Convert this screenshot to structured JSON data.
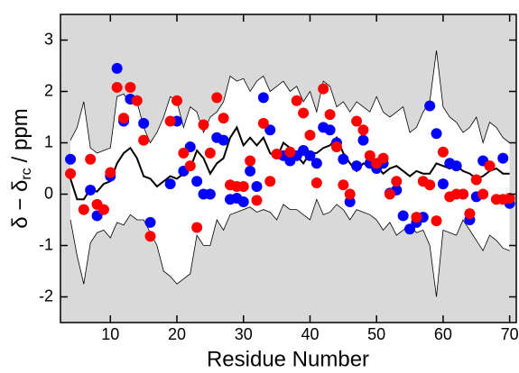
{
  "chart_data": {
    "type": "scatter",
    "xlabel": "Residue Number",
    "ylabel": [
      "δ − δ",
      "rc",
      "/ ppm"
    ],
    "xlim": [
      2.5,
      71
    ],
    "ylim": [
      -2.5,
      3.5
    ],
    "xticks": [
      10,
      20,
      30,
      40,
      50,
      60,
      70
    ],
    "yticks": [
      -2,
      -1,
      0,
      1,
      2,
      3
    ],
    "background": "#d9d9d9",
    "x": [
      4,
      5,
      6,
      7,
      8,
      9,
      10,
      11,
      12,
      13,
      14,
      15,
      16,
      17,
      18,
      19,
      20,
      21,
      22,
      23,
      24,
      25,
      26,
      27,
      28,
      29,
      30,
      31,
      32,
      33,
      34,
      35,
      36,
      37,
      38,
      39,
      40,
      41,
      42,
      43,
      44,
      45,
      46,
      47,
      48,
      49,
      50,
      51,
      52,
      53,
      54,
      55,
      56,
      57,
      58,
      59,
      60,
      61,
      62,
      63,
      64,
      65,
      66,
      67,
      68,
      69,
      70
    ],
    "band": {
      "color": "#ffffff",
      "upper": [
        1.05,
        1.3,
        1.8,
        0.9,
        0.8,
        0.85,
        0.9,
        1.9,
        1.95,
        1.75,
        1.8,
        1.3,
        1.0,
        1.2,
        1.5,
        1.9,
        1.8,
        1.3,
        1.7,
        1.6,
        1.2,
        1.5,
        1.6,
        1.8,
        2.3,
        2.2,
        2.25,
        2.0,
        2.2,
        2.3,
        2.0,
        2.1,
        2.2,
        2.0,
        2.1,
        1.8,
        2.0,
        1.6,
        2.2,
        2.1,
        1.7,
        1.8,
        1.6,
        1.8,
        1.7,
        1.6,
        1.9,
        1.6,
        1.5,
        1.6,
        1.7,
        1.2,
        1.3,
        1.6,
        1.8,
        2.8,
        1.7,
        1.5,
        1.4,
        1.2,
        1.3,
        1.5,
        1.0,
        1.4,
        1.3,
        1.1,
        1.0
      ],
      "lower": [
        -0.5,
        -1.2,
        -1.75,
        -0.95,
        -0.75,
        -0.7,
        -0.85,
        -0.55,
        -0.6,
        -0.4,
        -0.5,
        -0.5,
        -0.75,
        -1.0,
        -1.5,
        -1.6,
        -1.75,
        -1.65,
        -1.55,
        -0.8,
        -1.0,
        -1.0,
        -0.5,
        -0.7,
        -0.4,
        -0.35,
        -0.3,
        -0.25,
        -0.35,
        -0.3,
        -0.35,
        -0.5,
        -0.2,
        -0.3,
        -0.3,
        -0.4,
        -0.5,
        -0.1,
        -0.4,
        -0.35,
        -0.2,
        -0.3,
        -0.5,
        -0.3,
        -0.35,
        -0.4,
        -0.5,
        -0.7,
        -0.55,
        -0.8,
        -0.7,
        -0.6,
        -0.75,
        -0.7,
        -1.0,
        -2.0,
        -0.7,
        -0.75,
        -0.8,
        -0.5,
        -0.7,
        -0.9,
        -1.1,
        -0.8,
        -0.9,
        -1.05,
        -1.1
      ]
    },
    "line": {
      "color": "#000000",
      "values": [
        0.3,
        -0.1,
        -0.1,
        0.1,
        0.05,
        0.2,
        0.25,
        0.6,
        0.8,
        0.9,
        0.7,
        0.35,
        0.3,
        0.15,
        0.25,
        0.35,
        0.3,
        0.4,
        0.5,
        0.85,
        0.7,
        0.4,
        0.6,
        0.7,
        1.1,
        1.3,
        0.95,
        1.1,
        0.95,
        1.1,
        0.8,
        0.7,
        1.0,
        0.9,
        0.75,
        0.6,
        0.8,
        0.8,
        0.9,
        0.95,
        1.1,
        0.8,
        0.6,
        0.45,
        0.6,
        0.55,
        0.55,
        0.4,
        0.5,
        0.55,
        0.45,
        0.35,
        0.45,
        0.4,
        0.4,
        0.6,
        0.55,
        0.5,
        0.55,
        0.45,
        0.4,
        0.3,
        0.35,
        0.45,
        0.5,
        0.4,
        0.4
      ]
    },
    "series": [
      {
        "color": "#0000ff",
        "x": [
          4,
          7,
          8,
          10,
          11,
          12,
          13,
          15,
          16,
          19,
          20,
          21,
          22,
          23,
          24,
          25,
          26,
          27,
          28,
          29,
          30,
          31,
          32,
          33,
          34,
          36,
          37,
          38,
          39,
          40,
          41,
          42,
          43,
          44,
          45,
          46,
          47,
          48,
          49,
          50,
          51,
          52,
          53,
          54,
          55,
          56,
          57,
          58,
          59,
          60,
          61,
          62,
          63,
          64,
          65,
          66,
          69,
          70
        ],
        "values": [
          0.68,
          0.08,
          -0.42,
          0.35,
          2.45,
          1.42,
          1.85,
          1.38,
          -0.55,
          0.2,
          1.42,
          0.45,
          0.92,
          0.25,
          0.0,
          0.0,
          1.1,
          1.05,
          -0.1,
          -0.08,
          -0.15,
          0.45,
          0.15,
          1.88,
          1.25,
          0.75,
          0.65,
          0.75,
          0.85,
          0.75,
          0.6,
          1.3,
          1.25,
          1.0,
          0.68,
          -0.15,
          0.55,
          1.05,
          0.6,
          0.5,
          0.6,
          0.02,
          0.08,
          -0.42,
          -0.68,
          -0.55,
          -0.45,
          1.72,
          1.18,
          0.2,
          0.6,
          0.55,
          0.0,
          -0.5,
          -0.05,
          0.65,
          0.7,
          -0.18
        ]
      },
      {
        "color": "#ff0000",
        "x": [
          4,
          6,
          7,
          8,
          9,
          10,
          11,
          12,
          13,
          14,
          15,
          16,
          19,
          20,
          21,
          22,
          23,
          24,
          25,
          26,
          27,
          28,
          29,
          30,
          31,
          32,
          33,
          34,
          35,
          37,
          38,
          39,
          40,
          41,
          42,
          43,
          44,
          45,
          46,
          47,
          48,
          49,
          50,
          51,
          52,
          53,
          56,
          57,
          58,
          59,
          60,
          61,
          62,
          63,
          64,
          65,
          66,
          67,
          68,
          69,
          70
        ],
        "values": [
          0.4,
          -0.3,
          0.68,
          -0.2,
          -0.3,
          0.42,
          2.08,
          1.48,
          2.08,
          1.82,
          1.05,
          -0.82,
          1.42,
          1.82,
          0.8,
          0.55,
          -0.65,
          1.35,
          0.8,
          1.88,
          1.48,
          0.18,
          0.15,
          0.15,
          0.65,
          -0.12,
          1.38,
          0.25,
          0.78,
          0.82,
          1.82,
          1.58,
          1.15,
          0.22,
          2.05,
          1.55,
          0.92,
          0.18,
          0.0,
          1.42,
          1.25,
          0.75,
          0.6,
          0.7,
          0.0,
          0.25,
          -0.45,
          0.25,
          0.18,
          -0.52,
          0.82,
          -0.05,
          0.0,
          0.0,
          -0.38,
          0.28,
          0.0,
          0.55,
          -0.1,
          -0.1,
          -0.08
        ]
      }
    ]
  }
}
